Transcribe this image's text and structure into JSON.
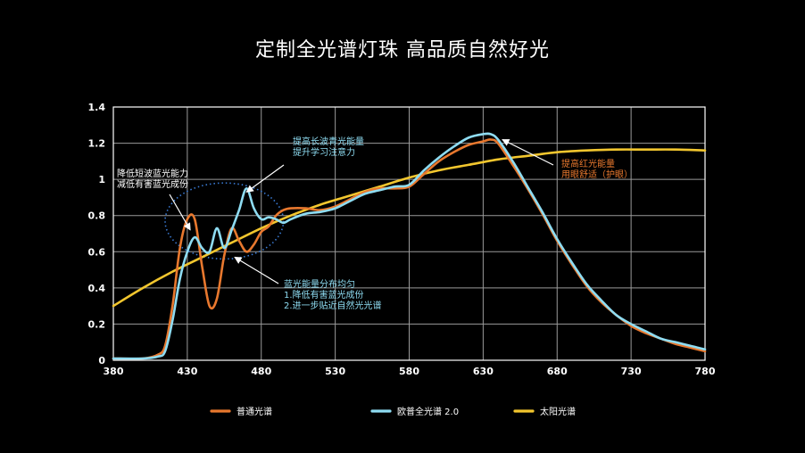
{
  "title": "定制全光谱灯珠  高品质自然好光",
  "colors": {
    "ordinary": "#E8782E",
    "oupu": "#8EDCF2",
    "sun": "#F2C62E",
    "grid": "#9a9a9a",
    "ellipse": "#3a7bd5"
  },
  "chart_data": {
    "type": "line",
    "title": "定制全光谱灯珠  高品质自然好光",
    "xlabel": "",
    "ylabel": "",
    "xlim": [
      380,
      780
    ],
    "ylim": [
      0,
      1.4
    ],
    "xticks": [
      380,
      430,
      480,
      530,
      580,
      630,
      680,
      730,
      780
    ],
    "yticks": [
      0,
      0.2,
      0.4,
      0.6,
      0.8,
      1,
      1.2,
      1.4
    ],
    "ytick_labels": [
      "0",
      "0.2",
      "0.4",
      "0.6",
      "0.8",
      "1",
      "1.2",
      "1.4"
    ],
    "grid": true,
    "legend_position": "bottom",
    "series": [
      {
        "name": "普通光谱",
        "color": "#E8782E",
        "x": [
          380,
          400,
          410,
          415,
          420,
          425,
          430,
          435,
          440,
          445,
          450,
          455,
          460,
          465,
          470,
          475,
          480,
          485,
          490,
          495,
          500,
          510,
          520,
          530,
          540,
          550,
          560,
          570,
          580,
          590,
          600,
          610,
          620,
          630,
          635,
          640,
          650,
          660,
          670,
          680,
          690,
          700,
          710,
          720,
          730,
          740,
          750,
          760,
          770,
          780
        ],
        "y": [
          0.01,
          0.01,
          0.03,
          0.08,
          0.3,
          0.62,
          0.78,
          0.78,
          0.52,
          0.3,
          0.34,
          0.58,
          0.73,
          0.66,
          0.6,
          0.64,
          0.71,
          0.74,
          0.8,
          0.83,
          0.84,
          0.84,
          0.83,
          0.85,
          0.89,
          0.93,
          0.95,
          0.95,
          0.96,
          1.03,
          1.1,
          1.15,
          1.19,
          1.21,
          1.22,
          1.2,
          1.08,
          0.95,
          0.81,
          0.66,
          0.53,
          0.41,
          0.32,
          0.25,
          0.19,
          0.15,
          0.12,
          0.09,
          0.07,
          0.05
        ]
      },
      {
        "name": "欧普全光谱 2.0",
        "color": "#8EDCF2",
        "x": [
          380,
          400,
          410,
          415,
          420,
          425,
          430,
          435,
          440,
          445,
          450,
          455,
          460,
          465,
          470,
          475,
          480,
          485,
          490,
          495,
          500,
          510,
          520,
          530,
          540,
          550,
          560,
          570,
          580,
          590,
          600,
          610,
          620,
          630,
          635,
          640,
          650,
          660,
          670,
          680,
          690,
          700,
          710,
          720,
          730,
          740,
          750,
          760,
          770,
          780
        ],
        "y": [
          0.01,
          0.01,
          0.02,
          0.05,
          0.22,
          0.45,
          0.6,
          0.68,
          0.62,
          0.6,
          0.73,
          0.62,
          0.72,
          0.83,
          0.95,
          0.84,
          0.78,
          0.79,
          0.78,
          0.76,
          0.78,
          0.81,
          0.82,
          0.84,
          0.88,
          0.92,
          0.94,
          0.96,
          0.97,
          1.05,
          1.12,
          1.18,
          1.23,
          1.25,
          1.25,
          1.22,
          1.1,
          0.96,
          0.82,
          0.67,
          0.54,
          0.42,
          0.33,
          0.25,
          0.2,
          0.16,
          0.12,
          0.1,
          0.08,
          0.06
        ]
      },
      {
        "name": "太阳光谱",
        "color": "#F2C62E",
        "x": [
          380,
          400,
          420,
          440,
          460,
          480,
          500,
          520,
          540,
          560,
          580,
          600,
          620,
          640,
          660,
          680,
          700,
          720,
          740,
          760,
          780
        ],
        "y": [
          0.3,
          0.4,
          0.49,
          0.57,
          0.65,
          0.73,
          0.8,
          0.86,
          0.91,
          0.96,
          1.01,
          1.05,
          1.08,
          1.11,
          1.13,
          1.15,
          1.16,
          1.165,
          1.165,
          1.165,
          1.16
        ]
      }
    ],
    "annotations": [
      {
        "lines": [
          "降低短波蓝光能力",
          "减低有害蓝光成份"
        ],
        "color": "#ffffff",
        "point": [
          432,
          0.72
        ]
      },
      {
        "lines": [
          "提高长波青光能量",
          "提升学习注意力"
        ],
        "color": "#8EDCF2",
        "point": [
          470,
          0.93
        ]
      },
      {
        "lines": [
          "蓝光能量分布均匀",
          "1.降低有害蓝光成份",
          "2.进一步贴近自然光光谱"
        ],
        "color": "#8EDCF2",
        "point": [
          462,
          0.57
        ]
      },
      {
        "lines": [
          "提高红光能量",
          "用眼舒适（护眼）"
        ],
        "color": "#E8782E",
        "point": [
          643,
          1.22
        ]
      }
    ],
    "highlight_region": {
      "x_center": 455,
      "y_center": 0.77,
      "x_radius": 40,
      "y_radius": 0.21
    }
  }
}
